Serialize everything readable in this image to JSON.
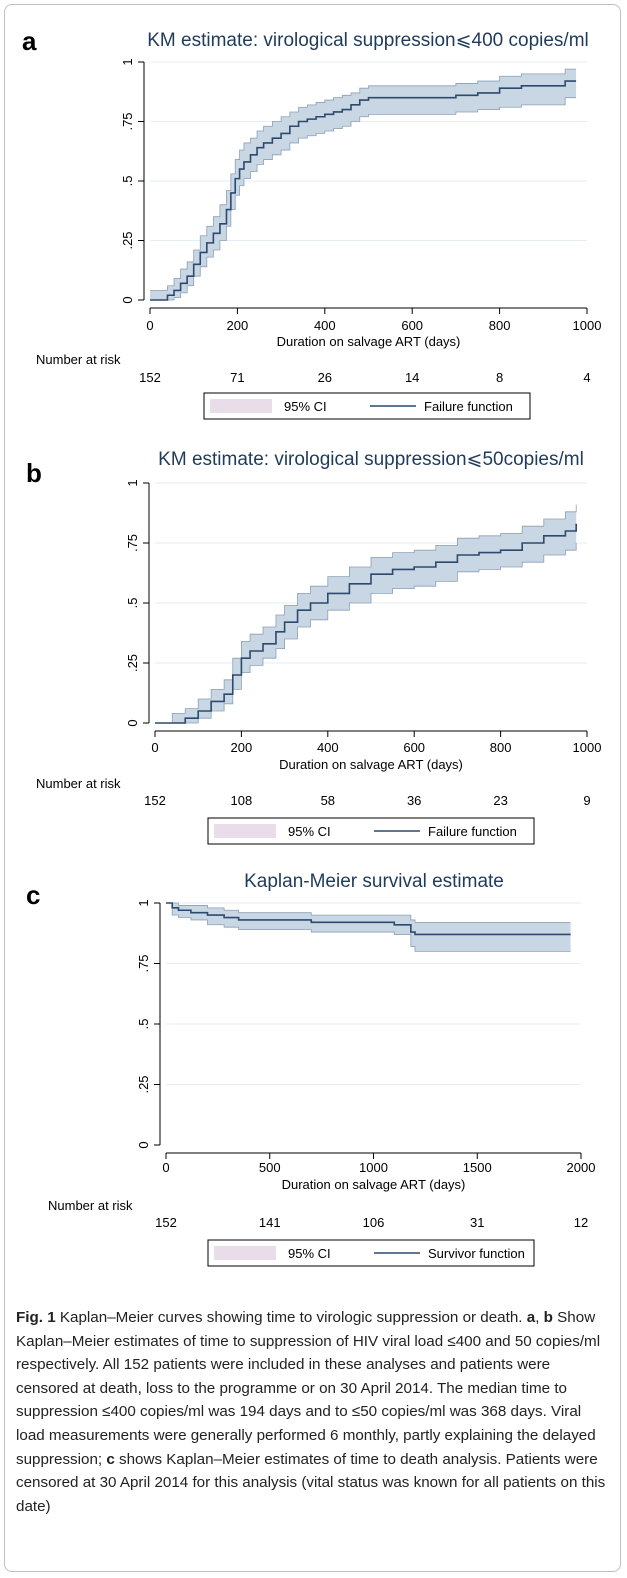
{
  "chart_data": [
    {
      "panel": "a",
      "type": "line",
      "title": "KM estimate: virological suppression⩽400 copies/ml",
      "xlabel": "Duration on salvage ART (days)",
      "ylabel": "",
      "xlim": [
        0,
        1000
      ],
      "ylim": [
        0,
        1
      ],
      "x_ticks": [
        "0",
        "200",
        "400",
        "600",
        "800",
        "1000"
      ],
      "y_ticks": [
        "0",
        ".25",
        ".5",
        ".75",
        "1"
      ],
      "grid": true,
      "risk_title": "Number at risk",
      "risk_times": [
        0,
        200,
        400,
        600,
        800,
        1000
      ],
      "risk_values": [
        "152",
        "71",
        "26",
        "14",
        "8",
        "4"
      ],
      "legend": {
        "ci": "95% CI",
        "line": "Failure function"
      },
      "series": [
        {
          "name": "Failure function",
          "x": [
            0,
            25,
            40,
            55,
            70,
            85,
            100,
            115,
            130,
            145,
            160,
            175,
            185,
            195,
            205,
            215,
            230,
            245,
            260,
            280,
            300,
            320,
            340,
            360,
            380,
            400,
            420,
            440,
            460,
            480,
            500,
            550,
            600,
            650,
            700,
            750,
            800,
            850,
            900,
            950,
            975
          ],
          "y": [
            0,
            0,
            0.02,
            0.04,
            0.07,
            0.1,
            0.15,
            0.2,
            0.24,
            0.28,
            0.32,
            0.38,
            0.45,
            0.51,
            0.55,
            0.58,
            0.61,
            0.64,
            0.66,
            0.68,
            0.7,
            0.73,
            0.75,
            0.76,
            0.77,
            0.78,
            0.79,
            0.8,
            0.82,
            0.84,
            0.85,
            0.85,
            0.85,
            0.85,
            0.86,
            0.87,
            0.89,
            0.9,
            0.9,
            0.92,
            0.92
          ],
          "ci_lower": [
            0,
            0,
            0,
            0.01,
            0.03,
            0.06,
            0.1,
            0.14,
            0.18,
            0.21,
            0.25,
            0.31,
            0.38,
            0.44,
            0.48,
            0.51,
            0.54,
            0.57,
            0.59,
            0.61,
            0.63,
            0.66,
            0.68,
            0.69,
            0.7,
            0.71,
            0.72,
            0.73,
            0.75,
            0.77,
            0.78,
            0.78,
            0.78,
            0.78,
            0.79,
            0.8,
            0.81,
            0.82,
            0.82,
            0.85,
            0.85
          ],
          "ci_upper": [
            0.04,
            0.04,
            0.06,
            0.09,
            0.13,
            0.16,
            0.21,
            0.27,
            0.31,
            0.35,
            0.4,
            0.46,
            0.53,
            0.59,
            0.63,
            0.66,
            0.68,
            0.71,
            0.73,
            0.75,
            0.77,
            0.79,
            0.81,
            0.82,
            0.83,
            0.84,
            0.85,
            0.86,
            0.87,
            0.89,
            0.9,
            0.9,
            0.9,
            0.9,
            0.91,
            0.92,
            0.94,
            0.95,
            0.95,
            0.97,
            0.97
          ]
        }
      ]
    },
    {
      "panel": "b",
      "type": "line",
      "title": "KM estimate: virological suppression⩽50copies/ml",
      "xlabel": "Duration on salvage ART (days)",
      "ylabel": "",
      "xlim": [
        0,
        1000
      ],
      "ylim": [
        0,
        1
      ],
      "x_ticks": [
        "0",
        "200",
        "400",
        "600",
        "800",
        "1000"
      ],
      "y_ticks": [
        "0",
        ".25",
        ".5",
        ".75",
        "1"
      ],
      "grid": true,
      "risk_title": "Number at risk",
      "risk_times": [
        0,
        200,
        400,
        600,
        800,
        1000
      ],
      "risk_values": [
        "152",
        "108",
        "58",
        "36",
        "23",
        "9"
      ],
      "legend": {
        "ci": "95% CI",
        "line": "Failure function"
      },
      "series": [
        {
          "name": "Failure function",
          "x": [
            0,
            40,
            70,
            100,
            130,
            160,
            180,
            200,
            220,
            250,
            280,
            300,
            330,
            360,
            400,
            450,
            500,
            550,
            600,
            650,
            700,
            750,
            800,
            850,
            900,
            950,
            975
          ],
          "y": [
            0,
            0,
            0.02,
            0.05,
            0.09,
            0.12,
            0.2,
            0.27,
            0.3,
            0.33,
            0.38,
            0.42,
            0.47,
            0.5,
            0.54,
            0.58,
            0.62,
            0.64,
            0.65,
            0.67,
            0.7,
            0.71,
            0.72,
            0.75,
            0.78,
            0.8,
            0.83
          ],
          "ci_lower": [
            0,
            0,
            0,
            0.02,
            0.05,
            0.08,
            0.14,
            0.21,
            0.24,
            0.27,
            0.31,
            0.35,
            0.4,
            0.43,
            0.47,
            0.5,
            0.54,
            0.56,
            0.57,
            0.59,
            0.63,
            0.64,
            0.65,
            0.67,
            0.7,
            0.72,
            0.75
          ],
          "ci_upper": [
            0,
            0.04,
            0.06,
            0.1,
            0.14,
            0.18,
            0.27,
            0.34,
            0.37,
            0.4,
            0.45,
            0.49,
            0.54,
            0.57,
            0.61,
            0.65,
            0.69,
            0.71,
            0.72,
            0.74,
            0.77,
            0.78,
            0.79,
            0.82,
            0.85,
            0.88,
            0.91
          ]
        }
      ]
    },
    {
      "panel": "c",
      "type": "line",
      "title": "Kaplan-Meier survival estimate",
      "xlabel": "Duration on salvage ART (days)",
      "ylabel": "",
      "xlim": [
        0,
        2000
      ],
      "ylim": [
        0,
        1
      ],
      "x_ticks": [
        "0",
        "500",
        "1000",
        "1500",
        "2000"
      ],
      "y_ticks": [
        "0",
        ".25",
        ".5",
        ".75",
        "1"
      ],
      "grid": true,
      "risk_title": "Number at risk",
      "risk_times": [
        0,
        500,
        1000,
        1500,
        2000
      ],
      "risk_values": [
        "152",
        "141",
        "106",
        "31",
        "12"
      ],
      "legend": {
        "ci": "95% CI",
        "line": "Survivor function"
      },
      "series": [
        {
          "name": "Survivor function",
          "x": [
            0,
            30,
            60,
            120,
            200,
            280,
            350,
            500,
            700,
            900,
            1100,
            1150,
            1180,
            1200,
            1400,
            1600,
            1800,
            1950
          ],
          "y": [
            1,
            0.98,
            0.97,
            0.96,
            0.95,
            0.94,
            0.93,
            0.93,
            0.92,
            0.92,
            0.91,
            0.91,
            0.88,
            0.87,
            0.87,
            0.87,
            0.87,
            0.87
          ],
          "ci_lower": [
            1,
            0.95,
            0.94,
            0.93,
            0.91,
            0.9,
            0.89,
            0.89,
            0.88,
            0.88,
            0.87,
            0.87,
            0.82,
            0.8,
            0.8,
            0.8,
            0.8,
            0.8
          ],
          "ci_upper": [
            1,
            1,
            0.99,
            0.99,
            0.98,
            0.97,
            0.96,
            0.96,
            0.95,
            0.95,
            0.95,
            0.95,
            0.93,
            0.92,
            0.92,
            0.92,
            0.92,
            0.92
          ]
        }
      ]
    }
  ],
  "caption": {
    "fig_label": "Fig. 1",
    "title": "Kaplan–Meier curves showing time to virologic suppression or death.",
    "ref_a": "a",
    "comma": ", ",
    "ref_b": "b",
    "text_ab": " Show Kaplan–Meier estimates of time to suppression of HIV viral load ≤400 and 50 copies/ml respectively. All 152 patients were included in these analyses and patients were censored at death, loss to the programme or on 30 April 2014. The median time to suppression ≤400 copies/ml was 194 days and to ≤50 copies/ml was 368 days. Viral load measurements were generally performed 6 monthly, partly explaining the delayed suppression; ",
    "ref_c": "c",
    "text_c": " shows Kaplan–Meier estimates of time to death analysis. Patients were censored at 30 April 2014 for this analysis (vital status was known for all patients on this date)"
  }
}
